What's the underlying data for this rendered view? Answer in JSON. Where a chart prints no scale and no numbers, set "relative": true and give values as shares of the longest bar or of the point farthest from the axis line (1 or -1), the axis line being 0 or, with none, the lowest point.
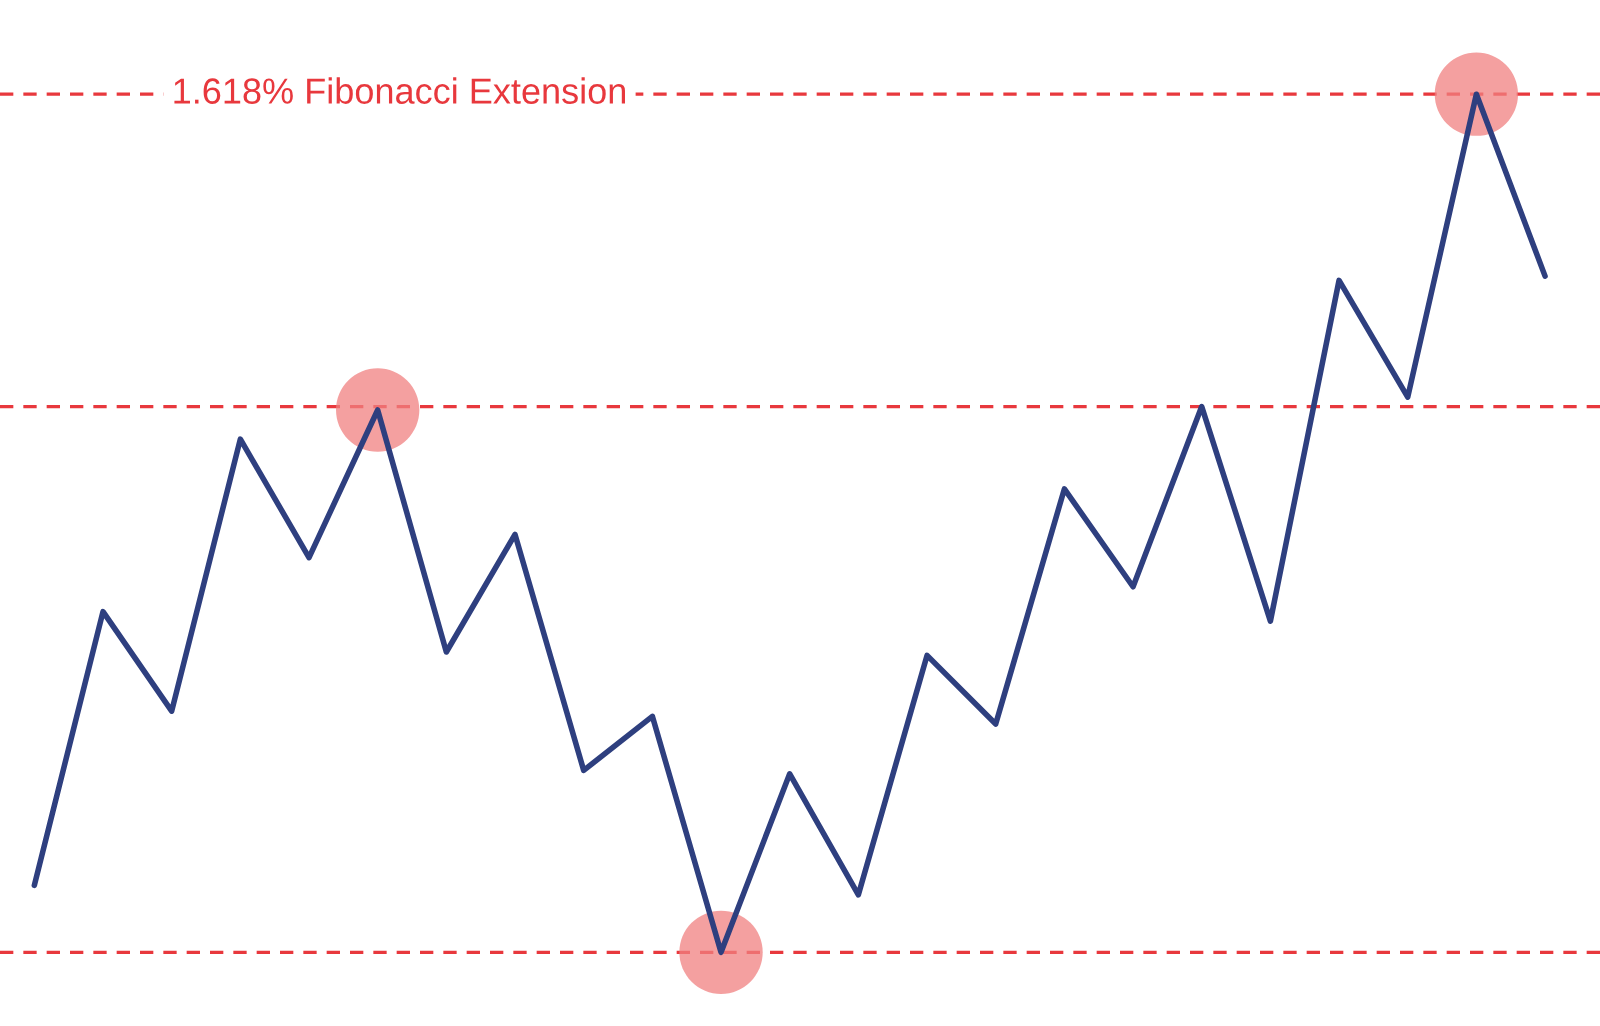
{
  "chart_data": {
    "type": "line",
    "relative": true,
    "legend": false,
    "marker": "none",
    "line_style": "solid",
    "categories": [
      null,
      null,
      null,
      null,
      null,
      null,
      null,
      null,
      null,
      null,
      null,
      null,
      null,
      null,
      null,
      null,
      null,
      null,
      null,
      null,
      null,
      null,
      null
    ],
    "series": [
      {
        "color": "#2e3f7f",
        "values": [
          0.078,
          0.397,
          0.281,
          0.598,
          0.46,
          0.632,
          0.35,
          0.487,
          0.212,
          0.275,
          0,
          0.208,
          0.067,
          0.346,
          0.266,
          0.54,
          0.426,
          0.636,
          0.386,
          0.783,
          0.647,
          1,
          0.788
        ]
      }
    ],
    "ref_lines": [
      {
        "axis": "y",
        "value": 1,
        "label": "1.618% Fibonacci Extension",
        "color": "#e8383d",
        "line_style": "dashed"
      },
      {
        "axis": "y",
        "value": 0.636,
        "color": "#e8383d",
        "line_style": "dashed"
      },
      {
        "axis": "y",
        "value": 0,
        "color": "#e8383d",
        "line_style": "dashed"
      }
    ]
  }
}
